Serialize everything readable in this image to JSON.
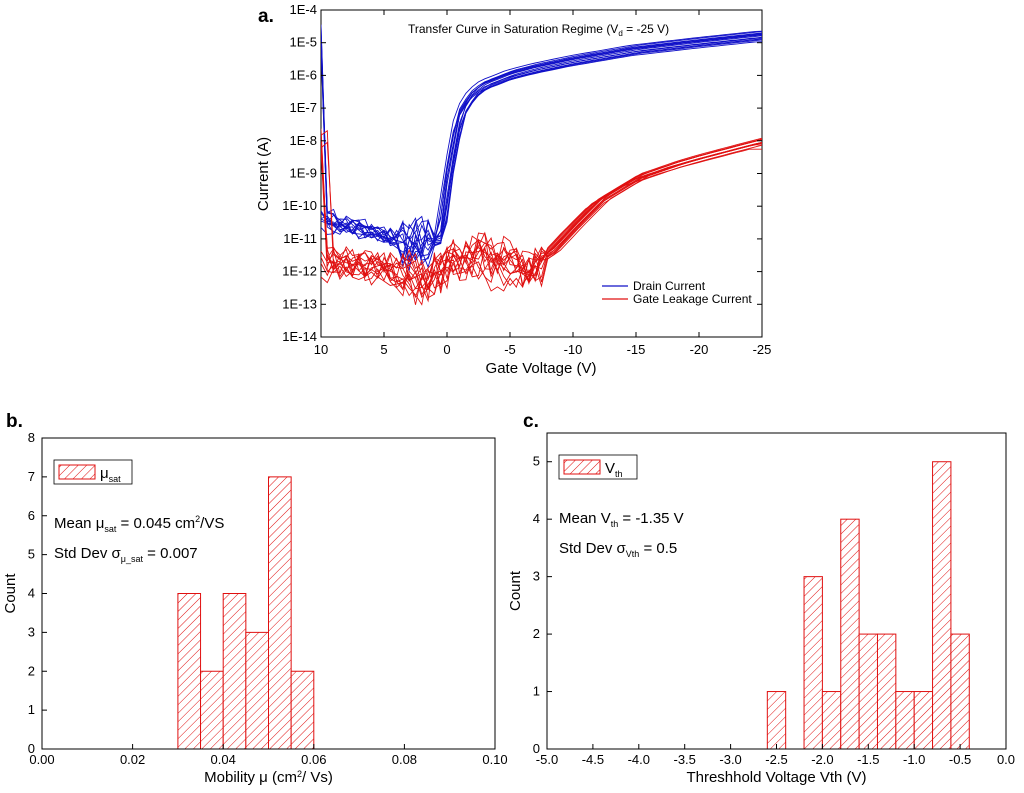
{
  "chart_data": [
    {
      "panel_label": "a.",
      "type": "line",
      "title": "Transfer Curve in Saturation Regime",
      "title_suffix": "(V",
      "title_sub": "d",
      "title_tail": " = -25 V)",
      "xlabel": "Gate Voltage (V)",
      "ylabel": "Current (A)",
      "x_scale": "linear",
      "y_scale": "log",
      "xlim": [
        10,
        -25
      ],
      "ylim": [
        1e-14,
        0.0001
      ],
      "x_ticks": [
        10,
        5,
        0,
        -5,
        -10,
        -15,
        -20,
        -25
      ],
      "x_tick_labels": [
        "10",
        "5",
        "0",
        "-5",
        "-10",
        "-15",
        "-20",
        "-25"
      ],
      "y_tick_labels": [
        "1E-14",
        "1E-13",
        "1E-12",
        "1E-11",
        "1E-10",
        "1E-9",
        "1E-8",
        "1E-7",
        "1E-6",
        "1E-5",
        "1E-4"
      ],
      "legend": {
        "placement": "bottom-right",
        "entries": [
          "Drain Current",
          "Gate Leakage Current"
        ]
      },
      "series": [
        {
          "name": "Drain Current",
          "color": "#1010c8",
          "curves": 14,
          "x": [
            10,
            8,
            6,
            4,
            2,
            1,
            0.5,
            0,
            -1,
            -2,
            -3,
            -4,
            -5,
            -7,
            -10,
            -15,
            -20,
            -25
          ],
          "y": [
            4e-11,
            2.5e-11,
            1.5e-11,
            1e-11,
            8e-12,
            8e-12,
            1e-11,
            5e-10,
            6e-08,
            2.5e-07,
            5e-07,
            7e-07,
            1e-06,
            1.6e-06,
            2.8e-06,
            6e-06,
            1e-05,
            1.6e-05
          ]
        },
        {
          "name": "Gate Leakage Current",
          "color": "#e01010",
          "curves": 14,
          "x": [
            10,
            8,
            6,
            4,
            2,
            0,
            -2,
            -4,
            -6,
            -8,
            -10,
            -12,
            -15,
            -18,
            -20,
            -22,
            -25
          ],
          "y": [
            2e-12,
            1.5e-12,
            1.2e-12,
            8e-13,
            4e-13,
            2e-12,
            3e-12,
            2e-12,
            1e-12,
            3e-12,
            2e-11,
            1.2e-10,
            6e-10,
            1.5e-09,
            2.5e-09,
            4e-09,
            8e-09
          ]
        }
      ]
    },
    {
      "panel_label": "b.",
      "type": "bar",
      "title": "",
      "xlabel": "Mobility μ (cm",
      "xlabel_sup": "2",
      "xlabel_tail": "/ Vs)",
      "ylabel": "Count",
      "xlim": [
        0,
        0.1
      ],
      "ylim": [
        0,
        8
      ],
      "x_ticks": [
        0,
        0.02,
        0.04,
        0.06,
        0.08,
        0.1
      ],
      "x_tick_labels": [
        "0.00",
        "0.02",
        "0.04",
        "0.06",
        "0.08",
        "0.10"
      ],
      "y_ticks": [
        0,
        1,
        2,
        3,
        4,
        5,
        6,
        7,
        8
      ],
      "bin_width": 0.005,
      "bins": [
        {
          "x0": 0.03,
          "value": 4
        },
        {
          "x0": 0.035,
          "value": 2
        },
        {
          "x0": 0.04,
          "value": 4
        },
        {
          "x0": 0.045,
          "value": 3
        },
        {
          "x0": 0.05,
          "value": 7
        },
        {
          "x0": 0.055,
          "value": 2
        }
      ],
      "legend": {
        "placement": "top-left",
        "entry": "μ",
        "entry_sub": "sat"
      },
      "annotations": [
        {
          "pre": "Mean μ",
          "sub": "sat",
          "mid": " = 0.045 cm",
          "sup": "2",
          "post": "/VS"
        },
        {
          "pre": "Std Dev σ",
          "sub": "μ_sat",
          "mid": " = 0.007",
          "sup": "",
          "post": ""
        }
      ]
    },
    {
      "panel_label": "c.",
      "type": "bar",
      "title": "",
      "xlabel": "Threshhold Voltage Vth (V)",
      "ylabel": "Count",
      "xlim": [
        -5.0,
        0
      ],
      "ylim": [
        0,
        5.5
      ],
      "x_ticks": [
        -5.0,
        -4.5,
        -4.0,
        -3.5,
        -3.0,
        -2.5,
        -2.0,
        -1.5,
        -1.0,
        -0.5,
        0.0
      ],
      "x_tick_labels": [
        "-5.0",
        "-4.5",
        "-4.0",
        "-3.5",
        "-3.0",
        "-2.5",
        "-2.0",
        "-1.5",
        "-1.0",
        "-0.5",
        "0.0"
      ],
      "y_ticks": [
        0,
        1,
        2,
        3,
        4,
        5
      ],
      "bin_width": 0.2,
      "bins": [
        {
          "x0": -2.6,
          "value": 1
        },
        {
          "x0": -2.2,
          "value": 3
        },
        {
          "x0": -2.0,
          "value": 1
        },
        {
          "x0": -1.8,
          "value": 4
        },
        {
          "x0": -1.6,
          "value": 2
        },
        {
          "x0": -1.4,
          "value": 2
        },
        {
          "x0": -1.2,
          "value": 1
        },
        {
          "x0": -1.0,
          "value": 1
        },
        {
          "x0": -0.8,
          "value": 5
        },
        {
          "x0": -0.6,
          "value": 2
        }
      ],
      "legend": {
        "placement": "top-left",
        "entry": "V",
        "entry_sub": "th"
      },
      "annotations": [
        {
          "pre": "Mean V",
          "sub": "th",
          "mid": " = -1.35 V",
          "sup": "",
          "post": ""
        },
        {
          "pre": "Std Dev σ",
          "sub": "Vth",
          "mid": " = 0.5",
          "sup": "",
          "post": ""
        }
      ]
    }
  ]
}
